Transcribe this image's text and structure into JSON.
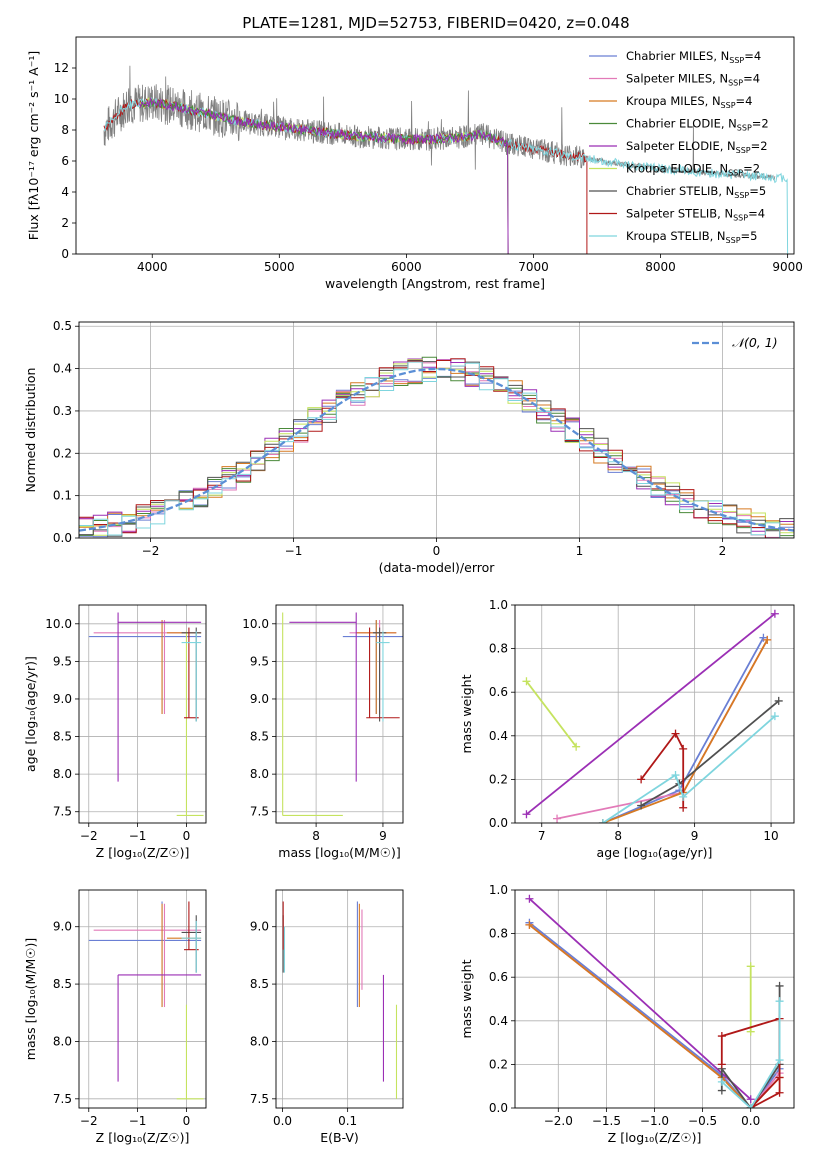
{
  "figure": {
    "title": "PLATE=1281, MJD=52753, FIBERID=0420, z=0.048"
  },
  "colors": {
    "chabrier_miles": "#6a7fd4",
    "salpeter_miles": "#e27ab8",
    "kroupa_miles": "#d67a22",
    "chabrier_elodie": "#4a8a3a",
    "salpeter_elodie": "#9b2fb5",
    "kroupa_elodie": "#c5e35f",
    "chabrier_stelib": "#505050",
    "salpeter_stelib": "#b01818",
    "kroupa_stelib": "#7fd5de",
    "data": "#808080",
    "normal": "#5b8fd6"
  },
  "chart_data": [
    {
      "id": "spectrum",
      "type": "line",
      "title": "PLATE=1281, MJD=52753, FIBERID=0420, z=0.048",
      "xlabel": "wavelength [Angstrom, rest frame]",
      "ylabel": "Flux [fλ10⁻¹⁷ erg cm⁻² s⁻¹ A⁻¹]",
      "xlim": [
        3400,
        9050
      ],
      "ylim": [
        0,
        14
      ],
      "xticks": [
        "4000",
        "5000",
        "6000",
        "7000",
        "8000",
        "9000"
      ],
      "yticks": [
        "0",
        "2",
        "4",
        "6",
        "8",
        "10",
        "12"
      ],
      "legend_position": "top-right",
      "legend": [
        {
          "label": "Chabrier MILES, N",
          "sub": "SSP",
          "tail": "=4"
        },
        {
          "label": "Salpeter MILES, N",
          "sub": "SSP",
          "tail": "=4"
        },
        {
          "label": "Kroupa MILES, N",
          "sub": "SSP",
          "tail": "=4"
        },
        {
          "label": "Chabrier ELODIE, N",
          "sub": "SSP",
          "tail": "=2"
        },
        {
          "label": "Salpeter ELODIE, N",
          "sub": "SSP",
          "tail": "=2"
        },
        {
          "label": "Kroupa ELODIE, N",
          "sub": "SSP",
          "tail": "=2"
        },
        {
          "label": "Chabrier STELIB, N",
          "sub": "SSP",
          "tail": "=5"
        },
        {
          "label": "Salpeter STELIB, N",
          "sub": "SSP",
          "tail": "=4"
        },
        {
          "label": "Kroupa STELIB, N",
          "sub": "SSP",
          "tail": "=5"
        }
      ],
      "continuum": {
        "x": [
          3620,
          3800,
          4000,
          4200,
          4400,
          4600,
          4800,
          5000,
          5200,
          5400,
          5600,
          5800,
          6000,
          6200,
          6400,
          6600,
          6800,
          7000,
          7200,
          7400,
          7600,
          7800,
          8000,
          8200,
          8400,
          8600,
          8800,
          8900
        ],
        "y": [
          8.0,
          9.6,
          9.8,
          9.5,
          9.1,
          8.7,
          8.4,
          8.2,
          8.0,
          7.8,
          7.6,
          7.5,
          7.4,
          7.4,
          7.5,
          7.7,
          7.1,
          6.8,
          6.5,
          6.2,
          5.9,
          5.7,
          5.5,
          5.4,
          5.2,
          5.1,
          5.0,
          4.9
        ]
      },
      "model_cutoffs": [
        {
          "series": "Kroupa ELODIE",
          "xmin": 3900,
          "xmax": 6800
        },
        {
          "series": "Salpeter STELIB",
          "xmin": 3620,
          "xmax": 7420
        },
        {
          "series": "Kroupa STELIB",
          "xmin": 3620,
          "xmax": 9000
        },
        {
          "series": "Chabrier ELODIE",
          "xmin": 3900,
          "xmax": 6800
        },
        {
          "series": "Salpeter ELODIE",
          "xmin": 3900,
          "xmax": 6800
        }
      ]
    },
    {
      "id": "residuals",
      "type": "line",
      "xlabel": "(data-model)/error",
      "ylabel": "Normed distribution",
      "xlim": [
        -2.5,
        2.5
      ],
      "ylim": [
        0,
        0.51
      ],
      "xticks": [
        "−2",
        "−1",
        "0",
        "1",
        "2"
      ],
      "yticks": [
        "0.0",
        "0.1",
        "0.2",
        "0.3",
        "0.4",
        "0.5"
      ],
      "legend_position": "top-right",
      "legend": [
        {
          "label": "𝒩(0, 1)"
        }
      ],
      "bin_width": 0.1,
      "bins_from": -2.5
    },
    {
      "id": "z-vs-age",
      "type": "scatter",
      "xlabel": "Z [log₁₀(Z/Z☉)]",
      "ylabel": "age  [log₁₀(age/yr)]",
      "xlim": [
        -2.2,
        0.4
      ],
      "ylim": [
        7.35,
        10.25
      ],
      "xticks": [
        "−2",
        "−1",
        "0"
      ],
      "yticks": [
        "7.5",
        "8.0",
        "8.5",
        "9.0",
        "9.5",
        "10.0"
      ]
    },
    {
      "id": "mass-vs-age",
      "type": "scatter",
      "xlabel": "mass [log₁₀(M/M☉)]",
      "xlim": [
        7.4,
        9.3
      ],
      "ylim": [
        7.35,
        10.25
      ],
      "xticks": [
        "8",
        "9"
      ],
      "yticks": [
        "7.5",
        "8.0",
        "8.5",
        "9.0",
        "9.5",
        "10.0"
      ]
    },
    {
      "id": "weight-vs-age",
      "type": "line",
      "xlabel": "age  [log₁₀(age/yr)]",
      "ylabel": "mass weight",
      "xlim": [
        6.65,
        10.3
      ],
      "ylim": [
        0,
        1
      ],
      "xticks": [
        "7",
        "8",
        "9",
        "10"
      ],
      "yticks": [
        "0.0",
        "0.2",
        "0.4",
        "0.6",
        "0.8",
        "1.0"
      ],
      "series": [
        {
          "name": "Chabrier MILES",
          "x": [
            7.8,
            8.8,
            9.9
          ],
          "y": [
            0.0,
            0.15,
            0.85
          ]
        },
        {
          "name": "Salpeter MILES",
          "x": [
            7.2,
            8.85,
            9.95
          ],
          "y": [
            0.02,
            0.14,
            0.84
          ]
        },
        {
          "name": "Kroupa MILES",
          "x": [
            7.8,
            8.85,
            9.95
          ],
          "y": [
            0.0,
            0.14,
            0.84
          ]
        },
        {
          "name": "Salpeter ELODIE",
          "x": [
            6.8,
            10.05
          ],
          "y": [
            0.04,
            0.96
          ]
        },
        {
          "name": "Kroupa ELODIE",
          "x": [
            6.8,
            7.45
          ],
          "y": [
            0.65,
            0.35
          ]
        },
        {
          "name": "Chabrier STELIB",
          "x": [
            8.3,
            8.8,
            10.1
          ],
          "y": [
            0.08,
            0.18,
            0.56
          ]
        },
        {
          "name": "Salpeter STELIB",
          "x": [
            8.3,
            8.75,
            8.85,
            8.85
          ],
          "y": [
            0.2,
            0.41,
            0.34,
            0.07
          ]
        },
        {
          "name": "Kroupa STELIB",
          "x": [
            7.8,
            8.75,
            8.85,
            10.05
          ],
          "y": [
            0.0,
            0.22,
            0.12,
            0.49
          ]
        }
      ]
    },
    {
      "id": "z-vs-mass",
      "type": "scatter",
      "xlabel": "Z [log₁₀(Z/Z☉)]",
      "ylabel": "mass [log₁₀(M/M☉)]",
      "xlim": [
        -2.2,
        0.4
      ],
      "ylim": [
        7.42,
        9.32
      ],
      "xticks": [
        "−2",
        "−1",
        "0"
      ],
      "yticks": [
        "7.5",
        "8.0",
        "8.5",
        "9.0"
      ]
    },
    {
      "id": "ebv-vs-mass",
      "type": "scatter",
      "xlabel": "E(B-V)",
      "xlim": [
        -0.01,
        0.185
      ],
      "ylim": [
        7.42,
        9.32
      ],
      "xticks": [
        "0.0",
        "0.1"
      ],
      "yticks": [
        "7.5",
        "8.0",
        "8.5",
        "9.0"
      ]
    },
    {
      "id": "weight-vs-z",
      "type": "line",
      "xlabel": "Z [log₁₀(Z/Z☉)]",
      "ylabel": "mass weight",
      "xlim": [
        -2.45,
        0.45
      ],
      "ylim": [
        0,
        1
      ],
      "xticks": [
        "−2.0",
        "−1.5",
        "−1.0",
        "−0.5",
        "0.0"
      ],
      "yticks": [
        "0.0",
        "0.2",
        "0.4",
        "0.6",
        "0.8",
        "1.0"
      ],
      "series": [
        {
          "name": "Chabrier MILES",
          "x": [
            -2.3,
            -0.3,
            0.0,
            0.3
          ],
          "y": [
            0.85,
            0.15,
            0.0,
            0.18
          ]
        },
        {
          "name": "Salpeter MILES",
          "x": [
            -2.3,
            -0.3,
            0.0,
            0.3
          ],
          "y": [
            0.84,
            0.14,
            0.0,
            0.16
          ]
        },
        {
          "name": "Kroupa MILES",
          "x": [
            -2.3,
            -0.3,
            0.0,
            0.3
          ],
          "y": [
            0.84,
            0.14,
            0.0,
            0.14
          ]
        },
        {
          "name": "Salpeter ELODIE",
          "x": [
            -2.3,
            0.0
          ],
          "y": [
            0.96,
            0.04
          ]
        },
        {
          "name": "Kroupa ELODIE",
          "x": [
            0.0,
            0.0
          ],
          "y": [
            0.65,
            0.35
          ]
        },
        {
          "name": "Chabrier STELIB",
          "x": [
            -0.3,
            -0.3,
            0.0,
            0.3,
            0.3
          ],
          "y": [
            0.08,
            0.18,
            0.0,
            0.2,
            0.56
          ]
        },
        {
          "name": "Salpeter STELIB",
          "x": [
            -0.3,
            -0.3,
            0.3,
            0.3,
            0.0,
            0.3
          ],
          "y": [
            0.2,
            0.33,
            0.41,
            0.07,
            0.0,
            0.14
          ]
        },
        {
          "name": "Kroupa STELIB",
          "x": [
            -0.3,
            0.0,
            0.3,
            0.3
          ],
          "y": [
            0.12,
            0.0,
            0.22,
            0.49
          ]
        }
      ]
    }
  ]
}
